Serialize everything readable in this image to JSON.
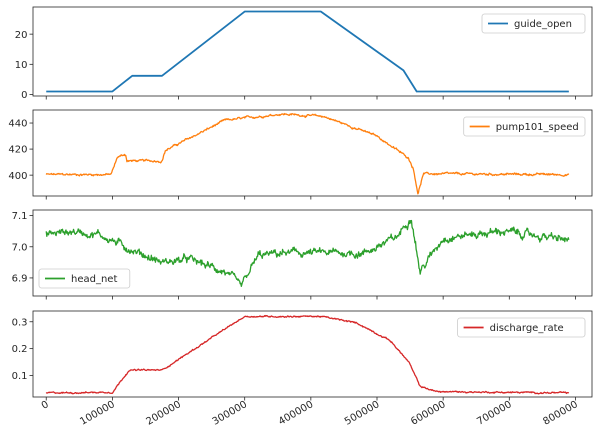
{
  "chart_data": [
    {
      "type": "line",
      "legend_position": "upper right",
      "grid": false,
      "series": [
        {
          "name": "guide_open",
          "color": "#1f77b4",
          "points": [
            [
              0,
              1
            ],
            [
              100000,
              1
            ],
            [
              130000,
              6.2
            ],
            [
              175000,
              6.2
            ],
            [
              300000,
              27.5
            ],
            [
              415000,
              27.5
            ],
            [
              540000,
              8
            ],
            [
              560000,
              1
            ],
            [
              790000,
              1
            ]
          ],
          "noise": 0
        }
      ],
      "xlim": [
        -20000,
        825000
      ],
      "ylim": [
        -0.5,
        29
      ],
      "yticks": [
        0,
        10,
        20
      ],
      "ytick_labels": [
        "0",
        "10",
        "20"
      ],
      "xticks": [
        0,
        100000,
        200000,
        300000,
        400000,
        500000,
        600000,
        700000,
        800000
      ],
      "show_xtick_labels": false
    },
    {
      "type": "line",
      "legend_position": "upper right",
      "grid": false,
      "series": [
        {
          "name": "pump101_speed",
          "color": "#ff7f0e",
          "points": [
            [
              0,
              400.5
            ],
            [
              98000,
              400.5
            ],
            [
              108000,
              414
            ],
            [
              120000,
              416
            ],
            [
              122000,
              411
            ],
            [
              175000,
              411
            ],
            [
              180000,
              419
            ],
            [
              270000,
              442
            ],
            [
              355000,
              447
            ],
            [
              420000,
              445
            ],
            [
              500000,
              430
            ],
            [
              548000,
              413
            ],
            [
              555000,
              405
            ],
            [
              562000,
              386
            ],
            [
              570000,
              401
            ],
            [
              790000,
              400.5
            ]
          ],
          "noise": 0.9
        }
      ],
      "xlim": [
        -20000,
        825000
      ],
      "ylim": [
        384,
        450
      ],
      "yticks": [
        400,
        420,
        440
      ],
      "ytick_labels": [
        "400",
        "420",
        "440"
      ],
      "xticks": [
        0,
        100000,
        200000,
        300000,
        400000,
        500000,
        600000,
        700000,
        800000
      ],
      "show_xtick_labels": false
    },
    {
      "type": "line",
      "legend_position": "lower left",
      "grid": false,
      "series": [
        {
          "name": "head_net",
          "color": "#2ca02c",
          "points": [
            [
              0,
              7.04
            ],
            [
              40000,
              7.05
            ],
            [
              80000,
              7.04
            ],
            [
              100000,
              7.02
            ],
            [
              130000,
              6.99
            ],
            [
              175000,
              6.95
            ],
            [
              215000,
              6.96
            ],
            [
              270000,
              6.92
            ],
            [
              295000,
              6.87
            ],
            [
              320000,
              6.97
            ],
            [
              360000,
              6.98
            ],
            [
              420000,
              6.98
            ],
            [
              480000,
              6.98
            ],
            [
              530000,
              7.03
            ],
            [
              552000,
              7.1
            ],
            [
              565000,
              6.92
            ],
            [
              600000,
              7.03
            ],
            [
              690000,
              7.05
            ],
            [
              760000,
              7.03
            ],
            [
              790000,
              7.02
            ]
          ],
          "noise": 0.013
        }
      ],
      "xlim": [
        -20000,
        825000
      ],
      "ylim": [
        6.842,
        7.118
      ],
      "yticks": [
        6.9,
        7.0,
        7.1
      ],
      "ytick_labels": [
        "6.9",
        "7.0",
        "7.1"
      ],
      "xticks": [
        0,
        100000,
        200000,
        300000,
        400000,
        500000,
        600000,
        700000,
        800000
      ],
      "show_xtick_labels": false
    },
    {
      "type": "line",
      "legend_position": "upper right",
      "grid": false,
      "series": [
        {
          "name": "discharge_rate",
          "color": "#d62728",
          "points": [
            [
              0,
              0.035
            ],
            [
              100000,
              0.038
            ],
            [
              125000,
              0.12
            ],
            [
              175000,
              0.12
            ],
            [
              300000,
              0.32
            ],
            [
              415000,
              0.32
            ],
            [
              470000,
              0.295
            ],
            [
              520000,
              0.23
            ],
            [
              548000,
              0.15
            ],
            [
              565000,
              0.06
            ],
            [
              590000,
              0.04
            ],
            [
              790000,
              0.035
            ]
          ],
          "noise": 0.003
        }
      ],
      "xlim": [
        -20000,
        825000
      ],
      "ylim": [
        0.02,
        0.34
      ],
      "yticks": [
        0.1,
        0.2,
        0.3
      ],
      "ytick_labels": [
        "0.1",
        "0.2",
        "0.3"
      ],
      "xticks": [
        0,
        100000,
        200000,
        300000,
        400000,
        500000,
        600000,
        700000,
        800000
      ],
      "xtick_labels": [
        "0",
        "100000",
        "200000",
        "300000",
        "400000",
        "500000",
        "600000",
        "700000",
        "800000"
      ],
      "show_xtick_labels": true
    }
  ]
}
